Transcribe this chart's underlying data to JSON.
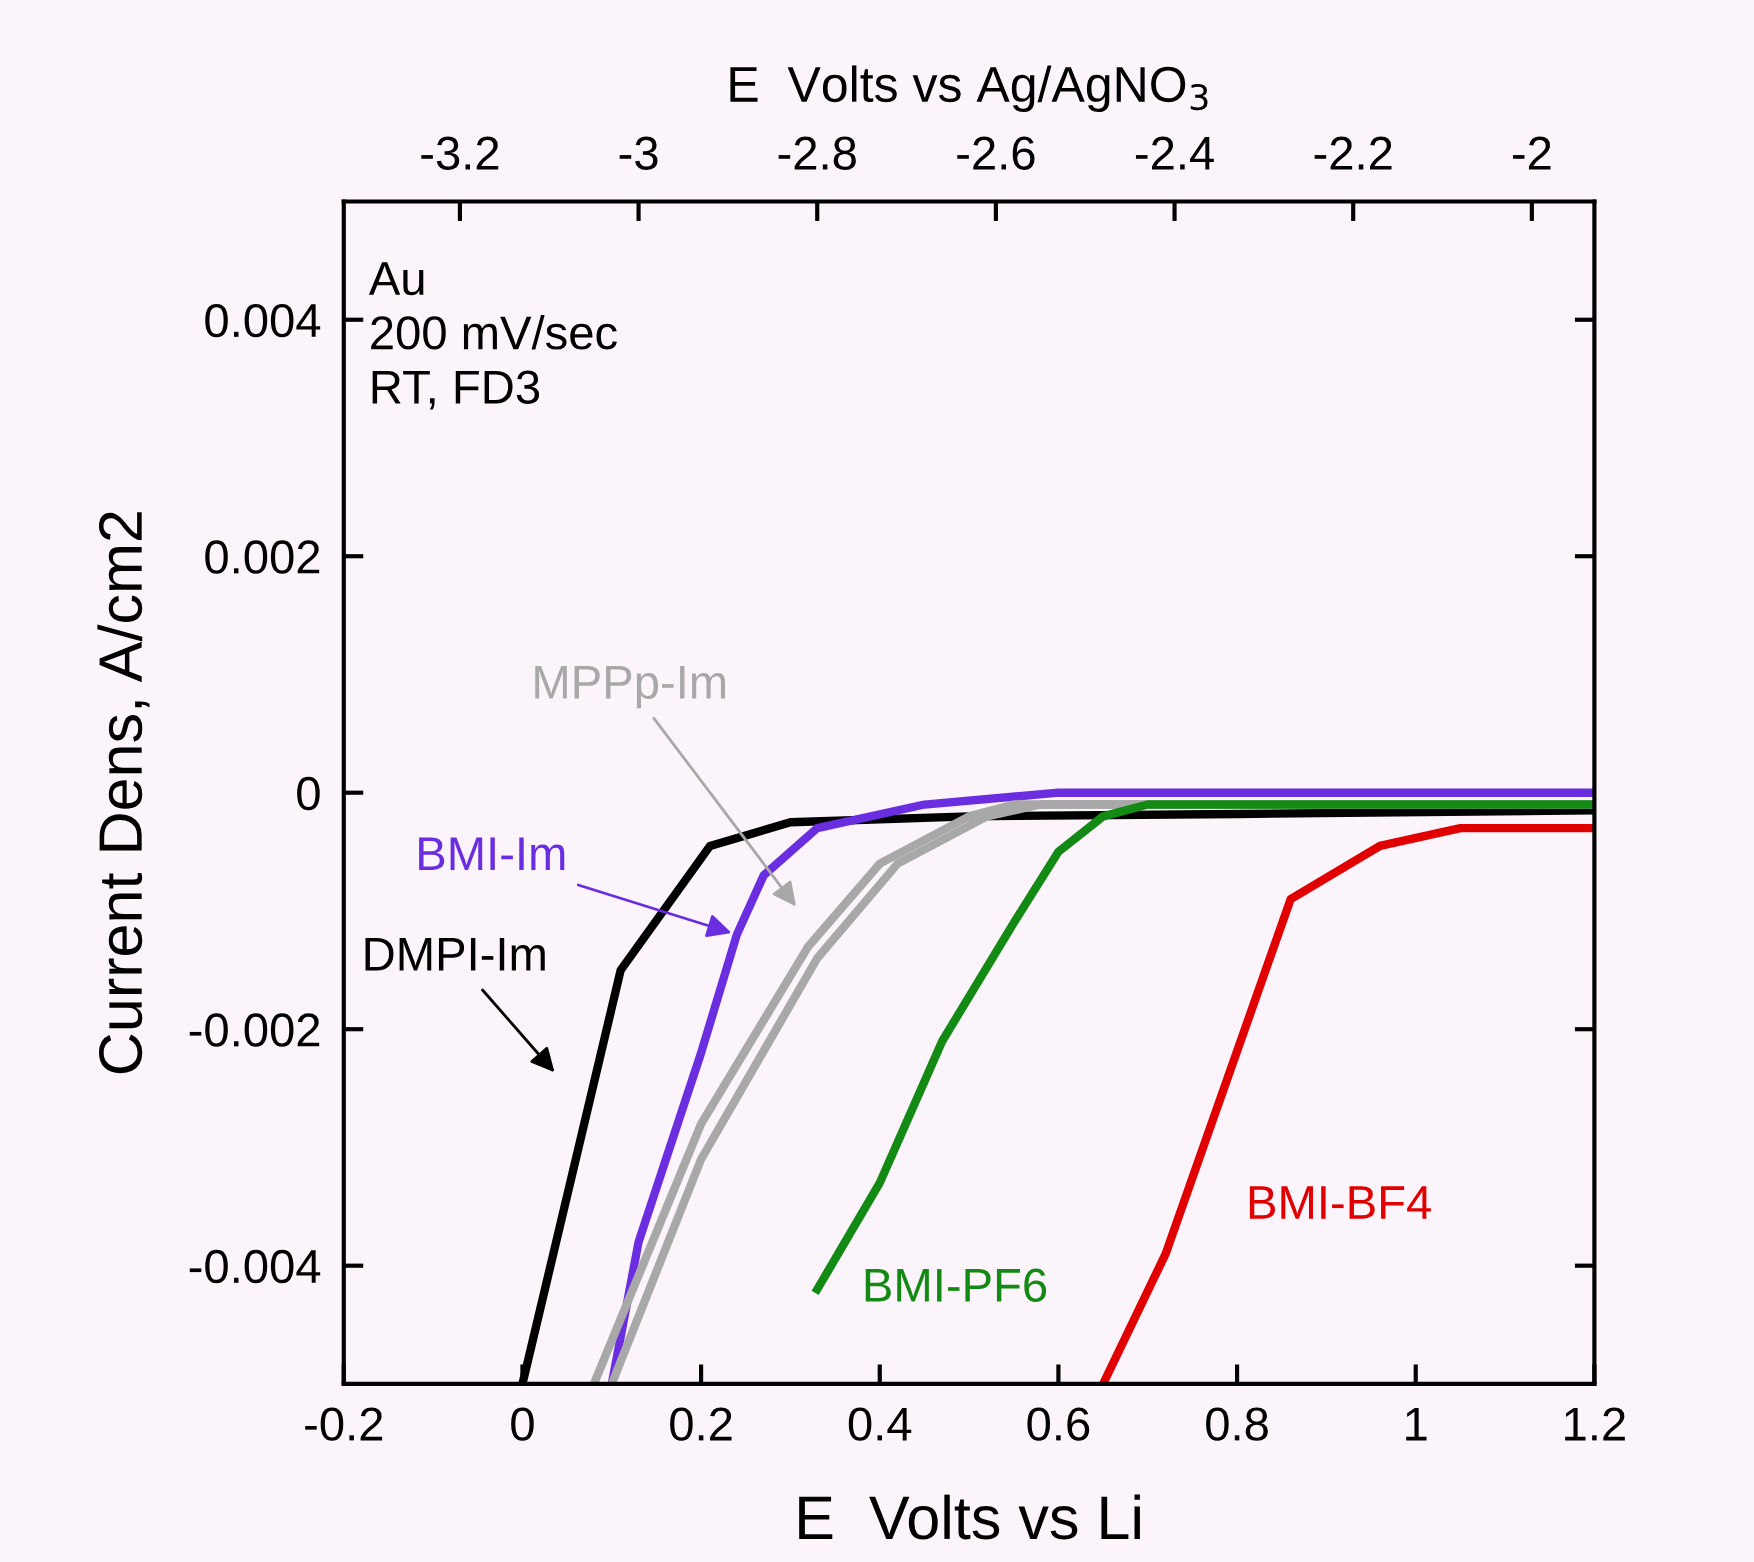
{
  "chart_data": {
    "type": "line",
    "xlabel": "E  Volts vs Li",
    "ylabel": "Current Dens, A/cm2",
    "x2label": "E  Volts vs Ag/AgNO$_{3}$",
    "xlim": [
      -0.2,
      1.2
    ],
    "xticks": [
      -0.2,
      0,
      0.2,
      0.4,
      0.6,
      0.8,
      1,
      1.2
    ],
    "x2lim": [
      -3.33,
      -1.93
    ],
    "x2ticks": [
      -3.2,
      -3,
      -2.8,
      -2.6,
      -2.4,
      -2.2,
      -2
    ],
    "ylim": [
      -0.005,
      0.005
    ],
    "yticks": [
      -0.004,
      -0.002,
      0,
      0.002,
      0.004
    ],
    "grid": false,
    "legend": false,
    "marker": "none",
    "line_style": "solid",
    "annotations": [
      "Au",
      "200 mV/sec",
      "RT, FD3"
    ],
    "series": [
      {
        "name": "DMPI-Im",
        "color": "#000000",
        "x": [
          0.0,
          0.11,
          0.21,
          0.3,
          0.5,
          0.8,
          1.2
        ],
        "values": [
          -0.005,
          -0.0015,
          -0.00045,
          -0.00025,
          -0.0002,
          -0.00018,
          -0.00015
        ]
      },
      {
        "name": "BMI-Im",
        "color": "#6a2ee0",
        "x": [
          0.1,
          0.13,
          0.2,
          0.24,
          0.27,
          0.33,
          0.45,
          0.6,
          1.2
        ],
        "values": [
          -0.005,
          -0.0038,
          -0.0022,
          -0.0012,
          -0.0007,
          -0.0003,
          -0.0001,
          0,
          0
        ]
      },
      {
        "name": "MPPp-Im",
        "color": "#a8a8a8",
        "x": [
          0.08,
          0.2,
          0.32,
          0.4,
          0.5,
          0.55,
          0.8,
          1.2
        ],
        "values": [
          -0.005,
          -0.0028,
          -0.0013,
          -0.0006,
          -0.0002,
          -0.0001,
          -0.0001,
          -0.0001
        ]
      },
      {
        "color": "#a8a8a8",
        "x": [
          0.1,
          0.2,
          0.33,
          0.42,
          0.52,
          0.58,
          0.8,
          1.2
        ],
        "values": [
          -0.005,
          -0.0031,
          -0.0014,
          -0.0006,
          -0.0002,
          -0.0001,
          -0.0001,
          -0.0001
        ]
      },
      {
        "name": "BMI-PF6",
        "color": "#138a13",
        "x": [
          0.33,
          0.4,
          0.47,
          0.55,
          0.6,
          0.65,
          0.7,
          1.2
        ],
        "values": [
          -0.0042,
          -0.0033,
          -0.0021,
          -0.0011,
          -0.0005,
          -0.0002,
          -0.0001,
          -0.0001
        ]
      },
      {
        "name": "BMI-BF4",
        "color": "#e00000",
        "x": [
          0.65,
          0.72,
          0.86,
          0.96,
          1.05,
          1.2
        ],
        "values": [
          -0.005,
          -0.0039,
          -0.0009,
          -0.00045,
          -0.0003,
          -0.0003
        ]
      }
    ]
  }
}
